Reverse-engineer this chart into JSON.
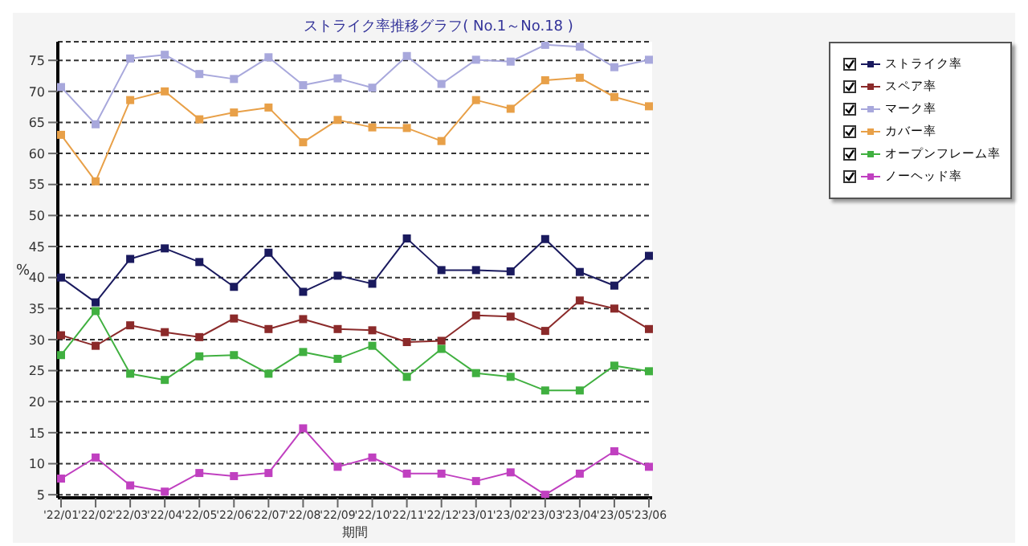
{
  "chart_data": {
    "type": "line",
    "title": "ストライク率推移グラフ( No.1～No.18 )",
    "xlabel": "期間",
    "ylabel": "%",
    "categories": [
      "'22/01",
      "'22/02",
      "'22/03",
      "'22/04",
      "'22/05",
      "'22/06",
      "'22/07",
      "'22/08",
      "'22/09",
      "'22/10",
      "'22/11",
      "'22/12",
      "'23/01",
      "'23/02",
      "'23/03",
      "'23/04",
      "'23/05",
      "'23/06"
    ],
    "series": [
      {
        "name": "ストライク率",
        "color": "#1a1a5e",
        "values": [
          40,
          36,
          43,
          44.7,
          42.5,
          38.5,
          44,
          37.7,
          40.3,
          39,
          46.3,
          41.2,
          41.2,
          41,
          46.2,
          40.9,
          38.7,
          43.5
        ]
      },
      {
        "name": "スペア率",
        "color": "#8b2a2a",
        "values": [
          30.7,
          29,
          32.3,
          31.2,
          30.4,
          33.4,
          31.7,
          33.3,
          31.7,
          31.5,
          29.6,
          29.8,
          33.9,
          33.7,
          31.4,
          36.3,
          35,
          31.7
        ]
      },
      {
        "name": "マーク率",
        "color": "#a8a8dc",
        "values": [
          70.7,
          64.7,
          75.3,
          75.9,
          72.8,
          72,
          75.5,
          71,
          72.1,
          70.6,
          75.7,
          71.2,
          75.1,
          74.8,
          77.5,
          77.2,
          73.9,
          75.1
        ]
      },
      {
        "name": "カバー率",
        "color": "#e8a048",
        "values": [
          63,
          55.5,
          68.6,
          70,
          65.5,
          66.6,
          67.4,
          61.8,
          65.4,
          64.2,
          64.1,
          62,
          68.6,
          67.2,
          71.8,
          72.2,
          69.1,
          67.6
        ]
      },
      {
        "name": "オープンフレーム率",
        "color": "#40b040",
        "values": [
          27.5,
          34.6,
          24.5,
          23.5,
          27.3,
          27.5,
          24.5,
          28,
          26.9,
          29,
          24,
          28.5,
          24.6,
          24,
          21.8,
          21.8,
          25.8,
          24.9
        ]
      },
      {
        "name": "ノーヘッド率",
        "color": "#c040c0",
        "values": [
          7.6,
          11,
          6.5,
          5.5,
          8.5,
          8,
          8.5,
          15.7,
          9.5,
          11,
          8.4,
          8.4,
          7.2,
          8.6,
          5,
          8.4,
          12,
          9.5
        ]
      }
    ],
    "ylim": [
      4.5,
      78
    ],
    "yticks": [
      5,
      10,
      15,
      20,
      25,
      30,
      35,
      40,
      45,
      50,
      55,
      60,
      65,
      70,
      75
    ],
    "grid": "y",
    "legend": "top right",
    "marker": "square",
    "line_style": "solid"
  }
}
